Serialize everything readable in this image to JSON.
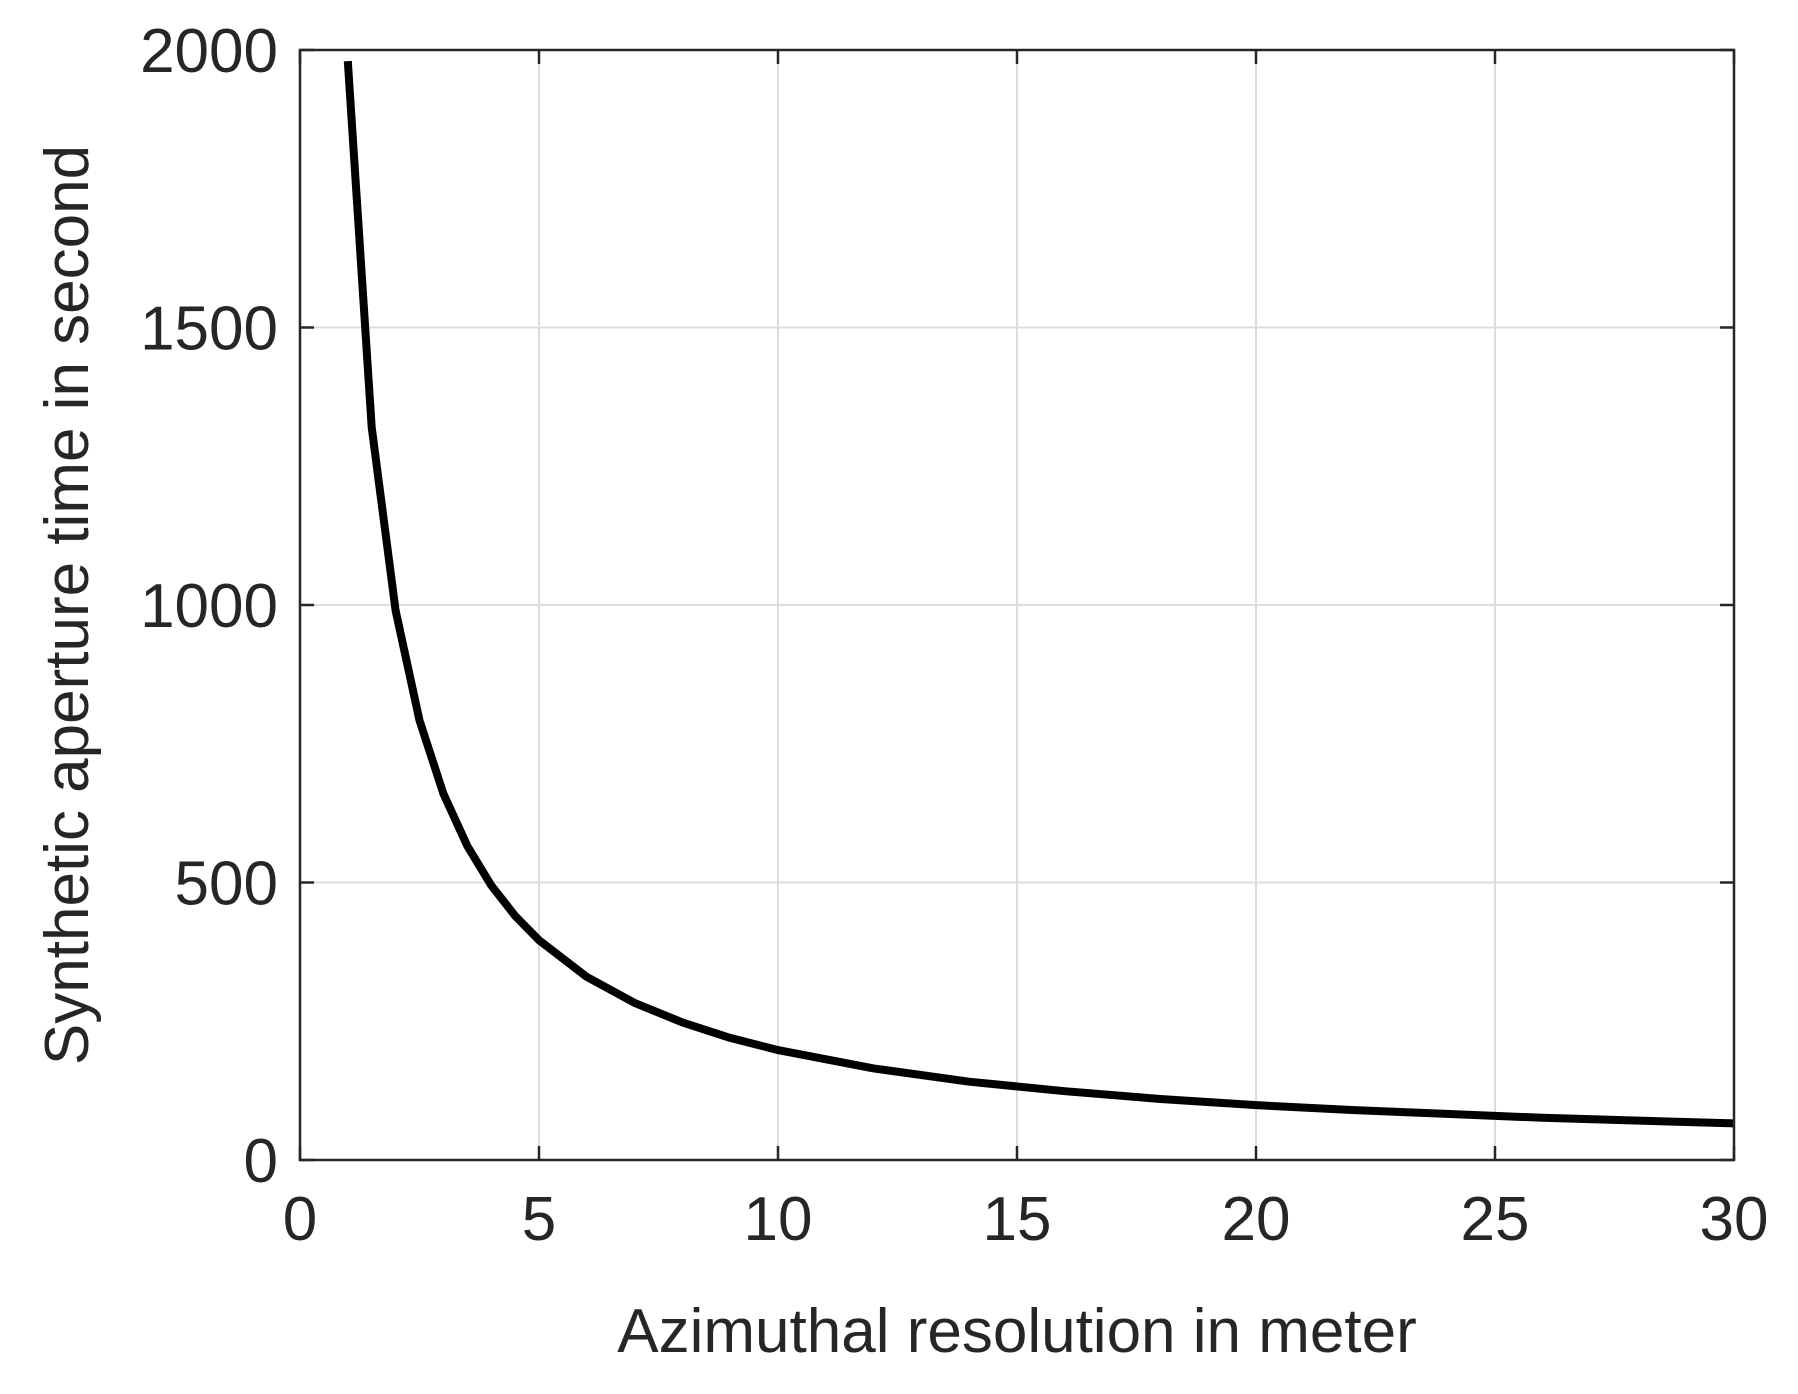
{
  "chart_data": {
    "type": "line",
    "xlabel": "Azimuthal resolution in meter",
    "ylabel": "Synthetic aperture time in second",
    "xlim": [
      0,
      30
    ],
    "ylim": [
      0,
      2000
    ],
    "xticks": [
      "0",
      "5",
      "10",
      "15",
      "20",
      "25",
      "30"
    ],
    "yticks": [
      "0",
      "500",
      "1000",
      "1500",
      "2000"
    ],
    "grid": true,
    "colors": {
      "line": "#000000",
      "grid": "#dcdcdc",
      "axes": "#262626"
    },
    "series": [
      {
        "x": [
          1,
          1.5,
          2,
          2.5,
          3,
          3.5,
          4,
          4.5,
          5,
          6,
          7,
          8,
          9,
          10,
          12,
          14,
          16,
          18,
          20,
          22,
          24,
          26,
          28,
          30
        ],
        "y": [
          1980,
          1320,
          990,
          792,
          660,
          566,
          495,
          440,
          396,
          330,
          283,
          248,
          220,
          198,
          165,
          141,
          124,
          110,
          99,
          90,
          83,
          76,
          71,
          66
        ]
      }
    ]
  }
}
